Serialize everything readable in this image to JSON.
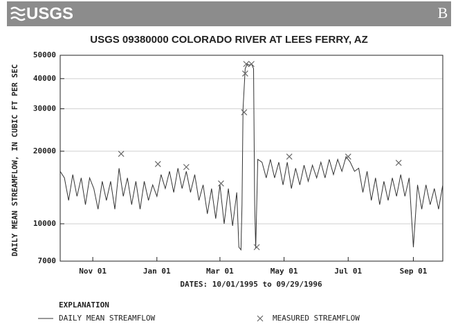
{
  "header": {
    "logo": "USGS",
    "letter": "B"
  },
  "chart_data": {
    "type": "line",
    "title": "USGS 09380000 COLORADO RIVER AT LEES FERRY, AZ",
    "y_label": "DAILY MEAN STREAMFLOW, IN CUBIC FT PER SEC",
    "x_label": "DATES: 10/01/1995 to 09/29/1996",
    "legend_title": "EXPLANATION",
    "log_y": true,
    "grid": true,
    "ylim": [
      7000,
      50000
    ],
    "yticks": [
      7000,
      10000,
      20000,
      30000,
      40000,
      50000
    ],
    "xlim": [
      "1995-10-01",
      "1996-09-29"
    ],
    "xticks": [
      {
        "value": "1995-11-01",
        "label": "Nov 01"
      },
      {
        "value": "1996-01-01",
        "label": "Jan 01"
      },
      {
        "value": "1996-03-01",
        "label": "Mar 01"
      },
      {
        "value": "1996-05-01",
        "label": "May 01"
      },
      {
        "value": "1996-07-01",
        "label": "Jul 01"
      },
      {
        "value": "1996-09-01",
        "label": "Sep 01"
      }
    ],
    "series": [
      {
        "name": "DAILY MEAN STREAMFLOW",
        "color": "#333333",
        "marker": "none",
        "x": [
          "1995-10-01",
          "1995-10-05",
          "1995-10-09",
          "1995-10-13",
          "1995-10-17",
          "1995-10-21",
          "1995-10-25",
          "1995-10-29",
          "1995-11-02",
          "1995-11-06",
          "1995-11-10",
          "1995-11-14",
          "1995-11-18",
          "1995-11-22",
          "1995-11-26",
          "1995-11-30",
          "1995-12-04",
          "1995-12-08",
          "1995-12-12",
          "1995-12-16",
          "1995-12-20",
          "1995-12-24",
          "1995-12-28",
          "1996-01-01",
          "1996-01-05",
          "1996-01-09",
          "1996-01-13",
          "1996-01-17",
          "1996-01-21",
          "1996-01-25",
          "1996-01-29",
          "1996-02-02",
          "1996-02-06",
          "1996-02-10",
          "1996-02-14",
          "1996-02-18",
          "1996-02-22",
          "1996-02-26",
          "1996-03-01",
          "1996-03-05",
          "1996-03-09",
          "1996-03-13",
          "1996-03-17",
          "1996-03-19",
          "1996-03-21",
          "1996-03-22",
          "1996-03-23",
          "1996-03-25",
          "1996-03-27",
          "1996-03-29",
          "1996-03-31",
          "1996-04-02",
          "1996-04-03",
          "1996-04-04",
          "1996-04-06",
          "1996-04-10",
          "1996-04-14",
          "1996-04-18",
          "1996-04-22",
          "1996-04-26",
          "1996-04-30",
          "1996-05-04",
          "1996-05-08",
          "1996-05-12",
          "1996-05-16",
          "1996-05-20",
          "1996-05-24",
          "1996-05-28",
          "1996-06-01",
          "1996-06-05",
          "1996-06-09",
          "1996-06-13",
          "1996-06-17",
          "1996-06-21",
          "1996-06-25",
          "1996-06-29",
          "1996-07-03",
          "1996-07-07",
          "1996-07-11",
          "1996-07-15",
          "1996-07-19",
          "1996-07-23",
          "1996-07-27",
          "1996-07-31",
          "1996-08-04",
          "1996-08-08",
          "1996-08-12",
          "1996-08-16",
          "1996-08-20",
          "1996-08-24",
          "1996-08-28",
          "1996-09-01",
          "1996-09-05",
          "1996-09-09",
          "1996-09-13",
          "1996-09-17",
          "1996-09-21",
          "1996-09-25",
          "1996-09-29"
        ],
        "values": [
          16500,
          15500,
          12500,
          16000,
          13000,
          15500,
          12000,
          15500,
          14000,
          11500,
          15000,
          12500,
          15000,
          11500,
          17000,
          13000,
          15500,
          12000,
          15000,
          11500,
          15000,
          12500,
          14500,
          13000,
          16000,
          14000,
          16500,
          13500,
          17000,
          14000,
          16500,
          13500,
          16000,
          12500,
          14500,
          11000,
          14000,
          10500,
          14500,
          10000,
          14000,
          9800,
          13500,
          8000,
          7800,
          12000,
          30000,
          44000,
          46000,
          45500,
          46000,
          44000,
          12000,
          7900,
          18500,
          18000,
          15500,
          18500,
          15500,
          18000,
          14500,
          18000,
          14000,
          17000,
          14500,
          17500,
          15000,
          17500,
          15500,
          18000,
          15500,
          18500,
          16000,
          18500,
          16500,
          19000,
          18000,
          16500,
          17000,
          13500,
          16500,
          12500,
          15500,
          12000,
          15000,
          12500,
          15500,
          13000,
          16000,
          13000,
          15500,
          8000,
          14500,
          11500,
          14500,
          12000,
          14000,
          11500,
          14500
        ]
      },
      {
        "name": "MEASURED STREAMFLOW",
        "color": "#666666",
        "marker": "x",
        "x": [
          "1995-11-28",
          "1996-01-02",
          "1996-01-29",
          "1996-03-02",
          "1996-03-24",
          "1996-03-25",
          "1996-03-26",
          "1996-03-31",
          "1996-04-05",
          "1996-05-06",
          "1996-07-01",
          "1996-08-18"
        ],
        "values": [
          19500,
          17700,
          17200,
          14700,
          29000,
          42000,
          46000,
          46000,
          8000,
          19000,
          19000,
          17900
        ]
      }
    ]
  }
}
